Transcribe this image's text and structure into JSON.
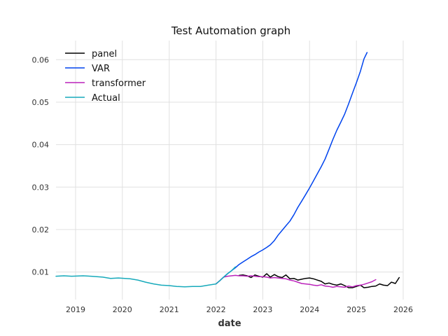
{
  "chart_data": {
    "type": "line",
    "title": "Test Automation graph",
    "xlabel": "date",
    "ylabel": "",
    "xlim": [
      "2018-08-01",
      "2026-01-01"
    ],
    "ylim": [
      0.0035,
      0.0645
    ],
    "x_ticks": [
      "2019",
      "2020",
      "2021",
      "2022",
      "2023",
      "2024",
      "2025",
      "2026"
    ],
    "y_ticks": [
      0.01,
      0.02,
      0.03,
      0.04,
      0.05,
      0.06
    ],
    "y_tick_labels": [
      "0.01",
      "0.02",
      "0.03",
      "0.04",
      "0.05",
      "0.06"
    ],
    "grid": true,
    "legend": "top-left",
    "series": [
      {
        "name": "panel",
        "color": "#000000",
        "points": [
          [
            "2022-07-01",
            0.0092
          ],
          [
            "2022-08-01",
            0.0093
          ],
          [
            "2022-09-01",
            0.0091
          ],
          [
            "2022-10-01",
            0.0087
          ],
          [
            "2022-11-01",
            0.0093
          ],
          [
            "2022-12-01",
            0.009
          ],
          [
            "2023-01-01",
            0.0088
          ],
          [
            "2023-02-01",
            0.0096
          ],
          [
            "2023-03-01",
            0.0088
          ],
          [
            "2023-04-01",
            0.0094
          ],
          [
            "2023-05-01",
            0.0089
          ],
          [
            "2023-06-01",
            0.0087
          ],
          [
            "2023-07-01",
            0.0093
          ],
          [
            "2023-08-01",
            0.0084
          ],
          [
            "2023-09-01",
            0.0085
          ],
          [
            "2023-10-01",
            0.0081
          ],
          [
            "2023-11-01",
            0.0083
          ],
          [
            "2023-12-01",
            0.0085
          ],
          [
            "2024-01-01",
            0.0086
          ],
          [
            "2024-02-01",
            0.0084
          ],
          [
            "2024-03-01",
            0.0081
          ],
          [
            "2024-04-01",
            0.0078
          ],
          [
            "2024-05-01",
            0.0072
          ],
          [
            "2024-06-01",
            0.0074
          ],
          [
            "2024-07-01",
            0.0071
          ],
          [
            "2024-08-01",
            0.0069
          ],
          [
            "2024-09-01",
            0.0072
          ],
          [
            "2024-10-01",
            0.0068
          ],
          [
            "2024-11-01",
            0.0063
          ],
          [
            "2024-12-01",
            0.0063
          ],
          [
            "2025-01-01",
            0.0066
          ],
          [
            "2025-02-01",
            0.0069
          ],
          [
            "2025-03-01",
            0.0063
          ],
          [
            "2025-04-01",
            0.0064
          ],
          [
            "2025-05-01",
            0.0066
          ],
          [
            "2025-06-01",
            0.0067
          ],
          [
            "2025-07-01",
            0.0072
          ],
          [
            "2025-08-01",
            0.0069
          ],
          [
            "2025-09-01",
            0.0068
          ],
          [
            "2025-10-01",
            0.0076
          ],
          [
            "2025-11-01",
            0.0073
          ],
          [
            "2025-12-01",
            0.0087
          ]
        ]
      },
      {
        "name": "VAR",
        "color": "#0044ee",
        "points": [
          [
            "2022-01-01",
            0.0072
          ],
          [
            "2022-02-01",
            0.008
          ],
          [
            "2022-03-01",
            0.0088
          ],
          [
            "2022-04-01",
            0.0096
          ],
          [
            "2022-05-01",
            0.0103
          ],
          [
            "2022-06-01",
            0.011
          ],
          [
            "2022-07-01",
            0.0118
          ],
          [
            "2022-08-01",
            0.0124
          ],
          [
            "2022-09-01",
            0.013
          ],
          [
            "2022-10-01",
            0.0136
          ],
          [
            "2022-11-01",
            0.0141
          ],
          [
            "2022-12-01",
            0.0147
          ],
          [
            "2023-01-01",
            0.0152
          ],
          [
            "2023-02-01",
            0.0158
          ],
          [
            "2023-03-01",
            0.0164
          ],
          [
            "2023-04-01",
            0.0174
          ],
          [
            "2023-05-01",
            0.0187
          ],
          [
            "2023-06-01",
            0.0198
          ],
          [
            "2023-07-01",
            0.0209
          ],
          [
            "2023-08-01",
            0.022
          ],
          [
            "2023-09-01",
            0.0235
          ],
          [
            "2023-10-01",
            0.0252
          ],
          [
            "2023-11-01",
            0.0267
          ],
          [
            "2023-12-01",
            0.0282
          ],
          [
            "2024-01-01",
            0.0298
          ],
          [
            "2024-02-01",
            0.0315
          ],
          [
            "2024-03-01",
            0.0331
          ],
          [
            "2024-04-01",
            0.0348
          ],
          [
            "2024-05-01",
            0.0366
          ],
          [
            "2024-06-01",
            0.0389
          ],
          [
            "2024-07-01",
            0.0412
          ],
          [
            "2024-08-01",
            0.0434
          ],
          [
            "2024-09-01",
            0.0453
          ],
          [
            "2024-10-01",
            0.0472
          ],
          [
            "2024-11-01",
            0.0496
          ],
          [
            "2024-12-01",
            0.0521
          ],
          [
            "2025-01-01",
            0.0546
          ],
          [
            "2025-02-01",
            0.0573
          ],
          [
            "2025-03-01",
            0.0602
          ],
          [
            "2025-03-25",
            0.0617
          ]
        ]
      },
      {
        "name": "transformer",
        "color": "#bb22bb",
        "points": [
          [
            "2022-01-01",
            0.0072
          ],
          [
            "2022-02-01",
            0.008
          ],
          [
            "2022-03-01",
            0.0088
          ],
          [
            "2022-04-01",
            0.009
          ],
          [
            "2022-05-01",
            0.0091
          ],
          [
            "2022-06-01",
            0.0092
          ],
          [
            "2022-07-01",
            0.0091
          ],
          [
            "2022-08-01",
            0.0091
          ],
          [
            "2022-09-01",
            0.009
          ],
          [
            "2022-10-01",
            0.0091
          ],
          [
            "2022-11-01",
            0.009
          ],
          [
            "2022-12-01",
            0.0089
          ],
          [
            "2023-01-01",
            0.0089
          ],
          [
            "2023-02-01",
            0.0088
          ],
          [
            "2023-03-01",
            0.0086
          ],
          [
            "2023-04-01",
            0.0087
          ],
          [
            "2023-05-01",
            0.0086
          ],
          [
            "2023-06-01",
            0.0085
          ],
          [
            "2023-07-01",
            0.0084
          ],
          [
            "2023-08-01",
            0.0081
          ],
          [
            "2023-09-01",
            0.0079
          ],
          [
            "2023-10-01",
            0.0076
          ],
          [
            "2023-11-01",
            0.0073
          ],
          [
            "2023-12-01",
            0.0072
          ],
          [
            "2024-01-01",
            0.0071
          ],
          [
            "2024-02-01",
            0.0069
          ],
          [
            "2024-03-01",
            0.0068
          ],
          [
            "2024-04-01",
            0.007
          ],
          [
            "2024-05-01",
            0.0067
          ],
          [
            "2024-06-01",
            0.0066
          ],
          [
            "2024-07-01",
            0.0064
          ],
          [
            "2024-08-01",
            0.0066
          ],
          [
            "2024-09-01",
            0.0065
          ],
          [
            "2024-10-01",
            0.0064
          ],
          [
            "2024-11-01",
            0.0067
          ],
          [
            "2024-12-01",
            0.0065
          ],
          [
            "2025-01-01",
            0.0068
          ],
          [
            "2025-02-01",
            0.0069
          ],
          [
            "2025-03-01",
            0.0071
          ],
          [
            "2025-04-01",
            0.0074
          ],
          [
            "2025-05-01",
            0.0077
          ],
          [
            "2025-06-01",
            0.0082
          ]
        ]
      },
      {
        "name": "Actual",
        "color": "#17aabb",
        "points": [
          [
            "2018-08-01",
            0.009
          ],
          [
            "2018-10-01",
            0.0091
          ],
          [
            "2018-12-01",
            0.009
          ],
          [
            "2019-03-01",
            0.0091
          ],
          [
            "2019-05-01",
            0.009
          ],
          [
            "2019-08-01",
            0.0088
          ],
          [
            "2019-10-01",
            0.0085
          ],
          [
            "2019-12-01",
            0.0086
          ],
          [
            "2020-03-01",
            0.0084
          ],
          [
            "2020-05-01",
            0.0081
          ],
          [
            "2020-07-01",
            0.0076
          ],
          [
            "2020-09-01",
            0.0072
          ],
          [
            "2020-11-01",
            0.0069
          ],
          [
            "2021-01-01",
            0.0068
          ],
          [
            "2021-03-01",
            0.0066
          ],
          [
            "2021-05-01",
            0.0065
          ],
          [
            "2021-07-01",
            0.0066
          ],
          [
            "2021-09-01",
            0.0066
          ],
          [
            "2021-11-01",
            0.0069
          ],
          [
            "2022-01-01",
            0.0072
          ],
          [
            "2022-02-01",
            0.008
          ],
          [
            "2022-03-01",
            0.0088
          ],
          [
            "2022-04-01",
            0.0096
          ],
          [
            "2022-05-01",
            0.0103
          ],
          [
            "2022-06-01",
            0.0112
          ]
        ]
      }
    ]
  }
}
